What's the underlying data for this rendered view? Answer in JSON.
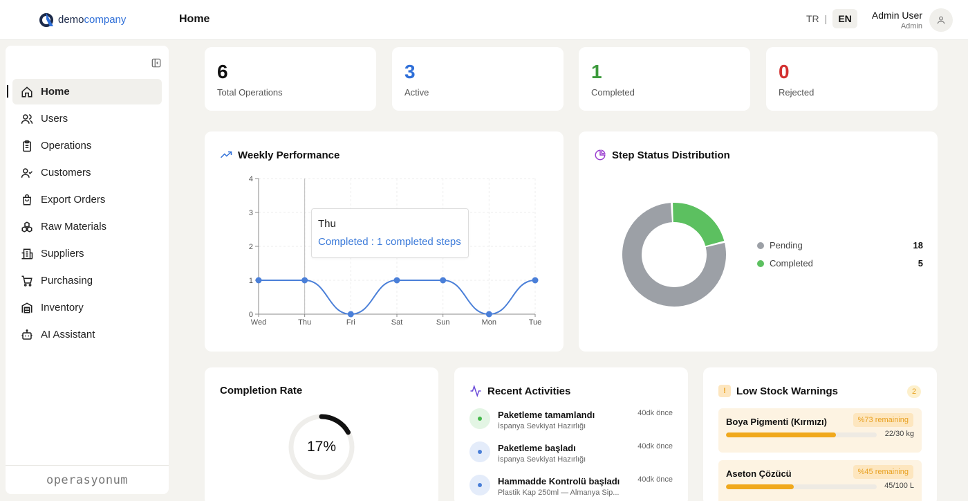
{
  "brand": {
    "name_part1": "demo",
    "name_part2": "company",
    "footer": "operasyonum"
  },
  "header": {
    "page_title": "Home",
    "lang_tr": "TR",
    "lang_sep": "|",
    "lang_en": "EN",
    "user_name": "Admin User",
    "user_role": "Admin"
  },
  "sidebar": {
    "items": [
      {
        "label": "Home",
        "icon": "home-icon"
      },
      {
        "label": "Users",
        "icon": "users-icon"
      },
      {
        "label": "Operations",
        "icon": "clipboard-icon"
      },
      {
        "label": "Customers",
        "icon": "customer-icon"
      },
      {
        "label": "Export Orders",
        "icon": "bag-icon"
      },
      {
        "label": "Raw Materials",
        "icon": "boxes-icon"
      },
      {
        "label": "Suppliers",
        "icon": "building-icon"
      },
      {
        "label": "Purchasing",
        "icon": "cart-icon"
      },
      {
        "label": "Inventory",
        "icon": "warehouse-icon"
      },
      {
        "label": "AI Assistant",
        "icon": "bot-icon"
      }
    ]
  },
  "stats": [
    {
      "value": "6",
      "label": "Total Operations",
      "color": "#111111"
    },
    {
      "value": "3",
      "label": "Active",
      "color": "#2f6fd8"
    },
    {
      "value": "1",
      "label": "Completed",
      "color": "#3c9a3c"
    },
    {
      "value": "0",
      "label": "Rejected",
      "color": "#d33030"
    }
  ],
  "weekly": {
    "title": "Weekly Performance",
    "tooltip_day": "Thu",
    "tooltip_text": "Completed : 1 completed steps"
  },
  "step_status": {
    "title": "Step Status Distribution",
    "legend": [
      {
        "label": "Pending",
        "value": "18",
        "color": "#9ca0a6"
      },
      {
        "label": "Completed",
        "value": "5",
        "color": "#5cc060"
      }
    ]
  },
  "completion": {
    "title": "Completion Rate",
    "value": "17%",
    "percent": 17
  },
  "activities": {
    "title": "Recent Activities",
    "items": [
      {
        "title": "Paketleme tamamlandı",
        "sub": "İspanya Sevkiyat Hazırlığı",
        "time": "40dk önce",
        "kind": "green"
      },
      {
        "title": "Paketleme başladı",
        "sub": "İspanya Sevkiyat Hazırlığı",
        "time": "40dk önce",
        "kind": "blue"
      },
      {
        "title": "Hammadde Kontrolü başladı",
        "sub": "Plastik Kap 250ml — Almanya Sip...",
        "time": "40dk önce",
        "kind": "blue"
      }
    ]
  },
  "low_stock": {
    "title": "Low Stock Warnings",
    "count": "2",
    "warn_symbol": "!",
    "items": [
      {
        "name": "Boya Pigmenti (Kırmızı)",
        "remaining": "%73 remaining",
        "qty": "22/30 kg",
        "fraction": 0.73
      },
      {
        "name": "Aseton Çözücü",
        "remaining": "%45 remaining",
        "qty": "45/100 L",
        "fraction": 0.45
      }
    ]
  },
  "chart_data": {
    "type": "line",
    "title": "Weekly Performance",
    "categories": [
      "Wed",
      "Thu",
      "Fri",
      "Sat",
      "Sun",
      "Mon",
      "Tue"
    ],
    "series": [
      {
        "name": "Completed",
        "values": [
          1,
          1,
          0,
          1,
          1,
          0,
          1
        ]
      }
    ],
    "ylim": [
      0,
      4
    ],
    "yticks": [
      0,
      1,
      2,
      3,
      4
    ],
    "grid": true,
    "color": "#4a7fd8"
  },
  "donut_data": {
    "type": "pie",
    "categories": [
      "Pending",
      "Completed"
    ],
    "values": [
      18,
      5
    ]
  }
}
